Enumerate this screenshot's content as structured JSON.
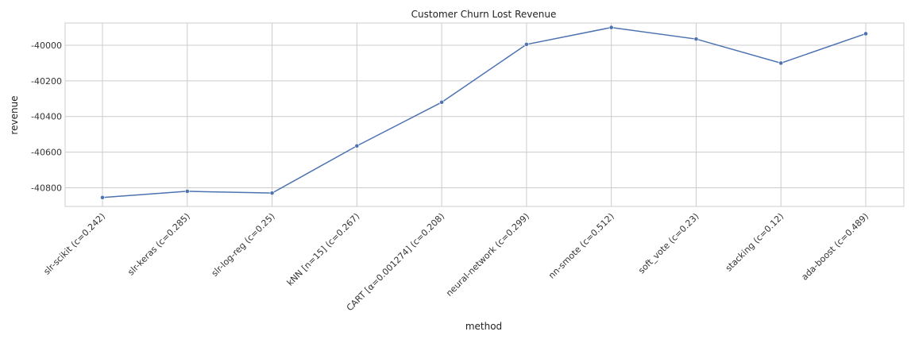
{
  "chart_data": {
    "type": "line",
    "title": "Customer Churn Lost Revenue",
    "xlabel": "method",
    "ylabel": "revenue",
    "categories": [
      "slr-scikit (c=0.242)",
      "slr-keras (c=0.285)",
      "slr-log-reg (c=0.25)",
      "kNN [n=15] (c=0.267)",
      "CART [α=0.001274] (c=0.208)",
      "neural-network (c=0.299)",
      "nn-smote (c=0.512)",
      "soft_vote (c=0.23)",
      "stacking (c=0.12)",
      "ada-boost (c=0.489)"
    ],
    "series": [
      {
        "name": "",
        "values": [
          -40855,
          -40820,
          -40830,
          -40565,
          -40320,
          -39995,
          -39900,
          -39965,
          -40100,
          -39935
        ]
      }
    ],
    "ylim": [
      -40905,
      -39875
    ],
    "yticks": [
      -40800,
      -40600,
      -40400,
      -40200,
      -40000
    ],
    "grid": true,
    "legend": "none",
    "line_color": "#4c72b0"
  }
}
